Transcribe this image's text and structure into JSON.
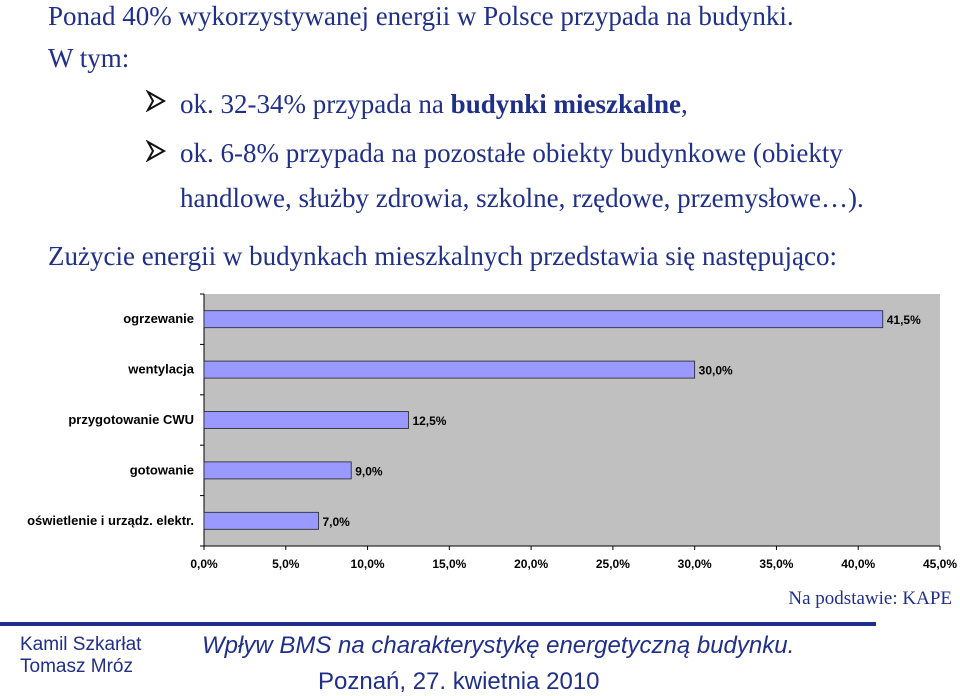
{
  "text": {
    "line1": "Ponad 40% wykorzystywanej energii w Polsce przypada na budynki.",
    "line2": "W tym:",
    "bullet1_prefix": "ok. 32-34% przypada na ",
    "bullet1_bold": "budynki mieszkalne",
    "bullet1_suffix": ",",
    "bullet2_line1": "ok. 6-8% przypada na pozostałe obiekty budynkowe (obiekty",
    "bullet2_line2": "handlowe, służby zdrowia, szkolne, rzędowe, przemysłowe…).",
    "intro": "Zużycie energii w budynkach mieszkalnych przedstawia się następująco:",
    "bullet_icon": "arrowhead-bullet-icon"
  },
  "chart_data": {
    "type": "bar",
    "orientation": "horizontal",
    "categories": [
      "ogrzewanie",
      "wentylacja",
      "przygotowanie CWU",
      "gotowanie",
      "oświetlenie i urządz. elektr."
    ],
    "values": [
      41.5,
      30.0,
      12.5,
      9.0,
      7.0
    ],
    "value_labels": [
      "41,5%",
      "30,0%",
      "12,5%",
      "9,0%",
      "7,0%"
    ],
    "xlim": [
      0,
      45
    ],
    "x_ticks": [
      "0,0%",
      "5,0%",
      "10,0%",
      "15,0%",
      "20,0%",
      "25,0%",
      "30,0%",
      "35,0%",
      "40,0%",
      "45,0%"
    ],
    "grid": false,
    "bar_color": "#9999ff",
    "plot_background": "#c0c0c0"
  },
  "source": "Na podstawie: KAPE",
  "footer": {
    "author1": "Kamil Szkarłat",
    "author2": "Tomasz Mróz",
    "title": "Wpływ BMS na charakterystykę energetyczną budynku.",
    "date": "Poznań, 27. kwietnia 2010"
  }
}
